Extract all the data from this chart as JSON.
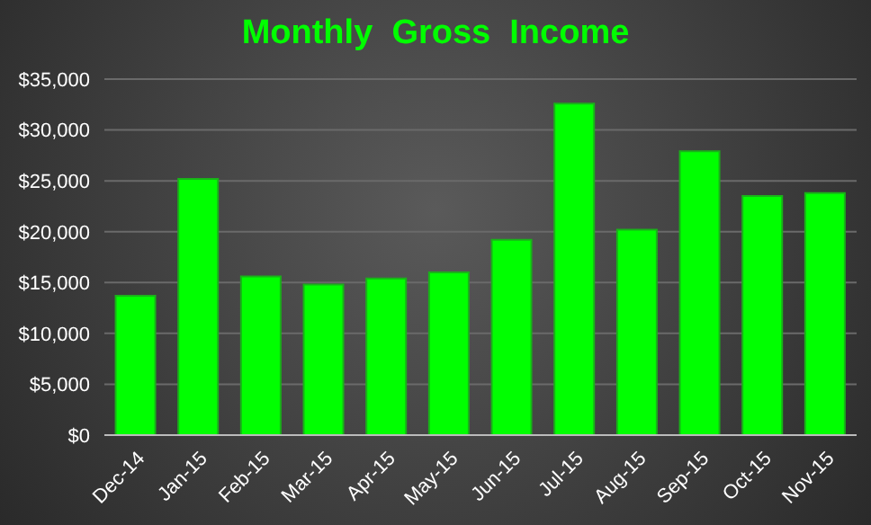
{
  "chart_data": {
    "type": "bar",
    "title": "Monthly  Gross  Income",
    "categories": [
      "Dec-14",
      "Jan-15",
      "Feb-15",
      "Mar-15",
      "Apr-15",
      "May-15",
      "Jun-15",
      "Jul-15",
      "Aug-15",
      "Sep-15",
      "Oct-15",
      "Nov-15"
    ],
    "values": [
      13700,
      25200,
      15600,
      14800,
      15400,
      16000,
      19200,
      32600,
      20200,
      27900,
      23500,
      23800
    ],
    "color": "#00ff00",
    "ylim": [
      0,
      35000
    ],
    "yticks": [
      {
        "value": 0,
        "label": "$0"
      },
      {
        "value": 5000,
        "label": "$5,000"
      },
      {
        "value": 10000,
        "label": "$10,000"
      },
      {
        "value": 15000,
        "label": "$15,000"
      },
      {
        "value": 20000,
        "label": "$20,000"
      },
      {
        "value": 25000,
        "label": "$25,000"
      },
      {
        "value": 30000,
        "label": "$30,000"
      },
      {
        "value": 35000,
        "label": "$35,000"
      }
    ],
    "grid": "y",
    "legend": false
  }
}
